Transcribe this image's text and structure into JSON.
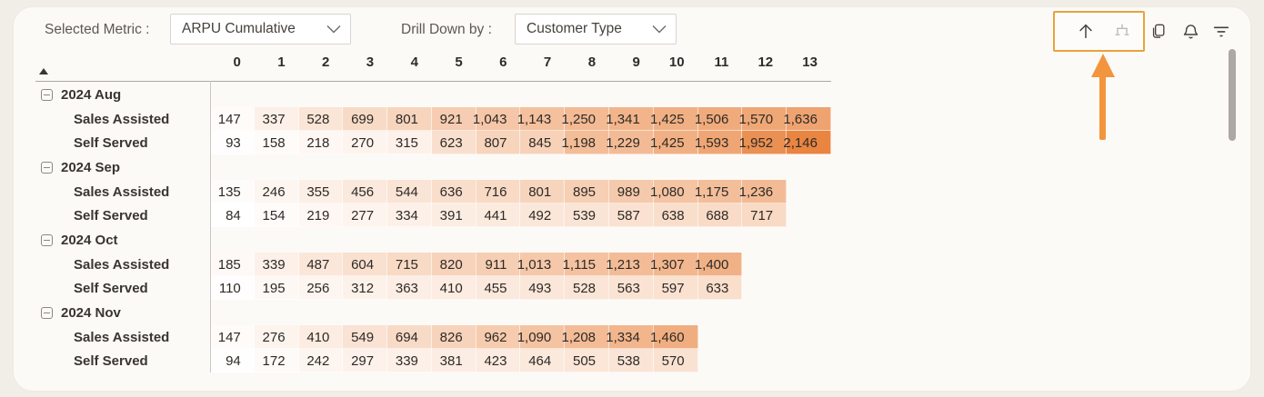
{
  "toolbar": {
    "selected_metric_label": "Selected Metric :",
    "selected_metric_value": "ARPU Cumulative",
    "drill_down_label": "Drill Down by :",
    "drill_down_value": "Customer Type"
  },
  "icons": [
    "drill-up-icon",
    "expand-hierarchy-icon",
    "copy-icon",
    "bell-icon",
    "filter-icon"
  ],
  "colors": {
    "page_background": "#F1EDE7",
    "panel_background": "#FCFAF7",
    "attention_box_border": "#E7A33C",
    "annotation_arrow": "#F2953E",
    "heat_min": "#FFFFFF",
    "heat_max": "#E98541",
    "label_text": "#39352F",
    "scrollbar": "#ADA8A3"
  },
  "chart_data": {
    "type": "heatmap",
    "columns": [
      0,
      1,
      2,
      3,
      4,
      5,
      6,
      7,
      8,
      9,
      10,
      11,
      12,
      13
    ],
    "row_groups": [
      {
        "label": "2024 Aug",
        "rows": [
          {
            "label": "Sales Assisted",
            "values": [
              147,
              337,
              528,
              699,
              801,
              921,
              1043,
              1143,
              1250,
              1341,
              1425,
              1506,
              1570,
              1636
            ]
          },
          {
            "label": "Self Served",
            "values": [
              93,
              158,
              218,
              270,
              315,
              623,
              807,
              845,
              1198,
              1229,
              1425,
              1593,
              1952,
              2146
            ]
          }
        ]
      },
      {
        "label": "2024 Sep",
        "rows": [
          {
            "label": "Sales Assisted",
            "values": [
              135,
              246,
              355,
              456,
              544,
              636,
              716,
              801,
              895,
              989,
              1080,
              1175,
              1236
            ]
          },
          {
            "label": "Self Served",
            "values": [
              84,
              154,
              219,
              277,
              334,
              391,
              441,
              492,
              539,
              587,
              638,
              688,
              717
            ]
          }
        ]
      },
      {
        "label": "2024 Oct",
        "rows": [
          {
            "label": "Sales Assisted",
            "values": [
              185,
              339,
              487,
              604,
              715,
              820,
              911,
              1013,
              1115,
              1213,
              1307,
              1400
            ]
          },
          {
            "label": "Self Served",
            "values": [
              110,
              195,
              256,
              312,
              363,
              410,
              455,
              493,
              528,
              563,
              597,
              633
            ]
          }
        ]
      },
      {
        "label": "2024 Nov",
        "rows": [
          {
            "label": "Sales Assisted",
            "values": [
              147,
              276,
              410,
              549,
              694,
              826,
              962,
              1090,
              1208,
              1334,
              1460
            ]
          },
          {
            "label": "Self Served",
            "values": [
              94,
              172,
              242,
              297,
              339,
              381,
              423,
              464,
              505,
              538,
              570
            ]
          }
        ]
      }
    ],
    "heat_scale": {
      "min_value": 84,
      "max_value": 2146,
      "min_color": "#FFFFFF",
      "max_color": "#E98541"
    },
    "legend_position": "none",
    "grid": false
  }
}
